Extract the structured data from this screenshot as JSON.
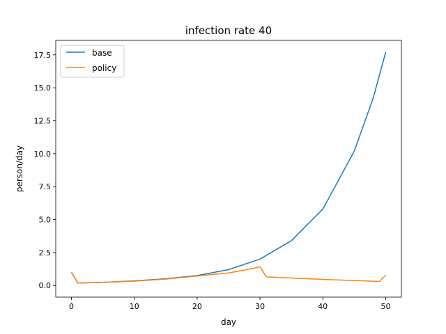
{
  "chart_data": {
    "type": "line",
    "title": "infection rate 40",
    "xlabel": "day",
    "ylabel": "person/day",
    "xlim": [
      -2.5,
      52.5
    ],
    "ylim": [
      -0.886,
      18.6
    ],
    "xticks": [
      0,
      10,
      20,
      30,
      40,
      50
    ],
    "xtick_labels": [
      "0",
      "10",
      "20",
      "30",
      "40",
      "50"
    ],
    "yticks": [
      0.0,
      2.5,
      5.0,
      7.5,
      10.0,
      12.5,
      15.0,
      17.5
    ],
    "ytick_labels": [
      "0.0",
      "2.5",
      "5.0",
      "7.5",
      "10.0",
      "12.5",
      "15.0",
      "17.5"
    ],
    "grid": false,
    "legend_position": "top-left",
    "series": [
      {
        "name": "base",
        "color": "#1f77b4",
        "x": [
          0,
          1,
          5,
          10,
          15,
          20,
          25,
          30,
          35,
          40,
          45,
          48,
          50
        ],
        "y": [
          1.0,
          0.18,
          0.24,
          0.35,
          0.51,
          0.75,
          1.2,
          2.0,
          3.4,
          5.8,
          10.2,
          14.2,
          17.7
        ]
      },
      {
        "name": "policy",
        "color": "#ff7f0e",
        "x": [
          0,
          1,
          5,
          10,
          15,
          20,
          25,
          29,
          30,
          31,
          40,
          49,
          50
        ],
        "y": [
          1.0,
          0.18,
          0.24,
          0.33,
          0.48,
          0.72,
          0.95,
          1.3,
          1.42,
          0.65,
          0.46,
          0.3,
          0.78
        ]
      }
    ]
  }
}
